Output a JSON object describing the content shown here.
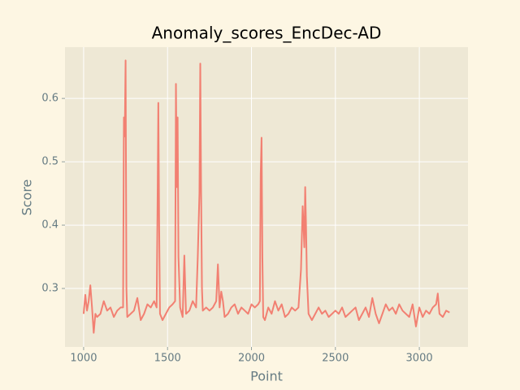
{
  "chart_data": {
    "type": "line",
    "title": "Anomaly_scores_EncDec-AD",
    "x_label": "Point",
    "y_label": "Score",
    "x": [
      1000,
      1010,
      1020,
      1030,
      1040,
      1050,
      1060,
      1070,
      1080,
      1100,
      1120,
      1140,
      1160,
      1180,
      1200,
      1220,
      1235,
      1240,
      1245,
      1250,
      1255,
      1260,
      1280,
      1300,
      1320,
      1340,
      1360,
      1380,
      1400,
      1420,
      1435,
      1440,
      1445,
      1450,
      1455,
      1470,
      1490,
      1510,
      1530,
      1545,
      1550,
      1555,
      1560,
      1565,
      1575,
      1590,
      1600,
      1610,
      1630,
      1650,
      1670,
      1680,
      1690,
      1695,
      1700,
      1705,
      1710,
      1730,
      1750,
      1770,
      1790,
      1800,
      1810,
      1820,
      1830,
      1840,
      1860,
      1880,
      1900,
      1920,
      1940,
      1960,
      1980,
      2000,
      2020,
      2040,
      2050,
      2055,
      2060,
      2065,
      2070,
      2080,
      2100,
      2120,
      2140,
      2160,
      2180,
      2200,
      2220,
      2240,
      2260,
      2280,
      2295,
      2305,
      2310,
      2315,
      2320,
      2325,
      2330,
      2340,
      2360,
      2380,
      2400,
      2420,
      2440,
      2460,
      2480,
      2500,
      2520,
      2540,
      2560,
      2580,
      2600,
      2620,
      2640,
      2660,
      2680,
      2700,
      2720,
      2740,
      2760,
      2780,
      2800,
      2820,
      2840,
      2860,
      2880,
      2900,
      2920,
      2940,
      2960,
      2980,
      3000,
      3020,
      3040,
      3060,
      3080,
      3100,
      3110,
      3120,
      3140,
      3160,
      3180
    ],
    "series": [
      {
        "color": "#f28072",
        "values": [
          0.26,
          0.29,
          0.265,
          0.28,
          0.305,
          0.27,
          0.23,
          0.26,
          0.255,
          0.26,
          0.28,
          0.265,
          0.27,
          0.255,
          0.265,
          0.27,
          0.27,
          0.57,
          0.54,
          0.66,
          0.3,
          0.255,
          0.26,
          0.265,
          0.285,
          0.25,
          0.26,
          0.275,
          0.27,
          0.28,
          0.27,
          0.42,
          0.593,
          0.4,
          0.26,
          0.25,
          0.26,
          0.27,
          0.275,
          0.28,
          0.623,
          0.46,
          0.57,
          0.35,
          0.27,
          0.255,
          0.352,
          0.26,
          0.265,
          0.28,
          0.27,
          0.35,
          0.45,
          0.655,
          0.45,
          0.3,
          0.265,
          0.27,
          0.265,
          0.27,
          0.28,
          0.338,
          0.27,
          0.295,
          0.28,
          0.255,
          0.26,
          0.27,
          0.275,
          0.26,
          0.27,
          0.265,
          0.26,
          0.275,
          0.27,
          0.275,
          0.28,
          0.48,
          0.538,
          0.35,
          0.255,
          0.25,
          0.27,
          0.26,
          0.28,
          0.265,
          0.275,
          0.255,
          0.26,
          0.27,
          0.265,
          0.27,
          0.33,
          0.43,
          0.4,
          0.365,
          0.46,
          0.4,
          0.32,
          0.26,
          0.25,
          0.26,
          0.27,
          0.26,
          0.265,
          0.255,
          0.26,
          0.265,
          0.26,
          0.27,
          0.255,
          0.26,
          0.265,
          0.27,
          0.25,
          0.26,
          0.27,
          0.255,
          0.285,
          0.26,
          0.245,
          0.26,
          0.275,
          0.265,
          0.27,
          0.26,
          0.275,
          0.265,
          0.26,
          0.255,
          0.275,
          0.24,
          0.27,
          0.255,
          0.265,
          0.26,
          0.27,
          0.275,
          0.292,
          0.26,
          0.255,
          0.265,
          0.262
        ]
      }
    ],
    "xlim": [
      889,
      3290
    ],
    "ylim": [
      0.2077,
      0.681
    ],
    "xticks": [
      1000,
      1500,
      2000,
      2500,
      3000
    ],
    "yticks": [
      0.3,
      0.4,
      0.5,
      0.6
    ],
    "grid": true
  }
}
